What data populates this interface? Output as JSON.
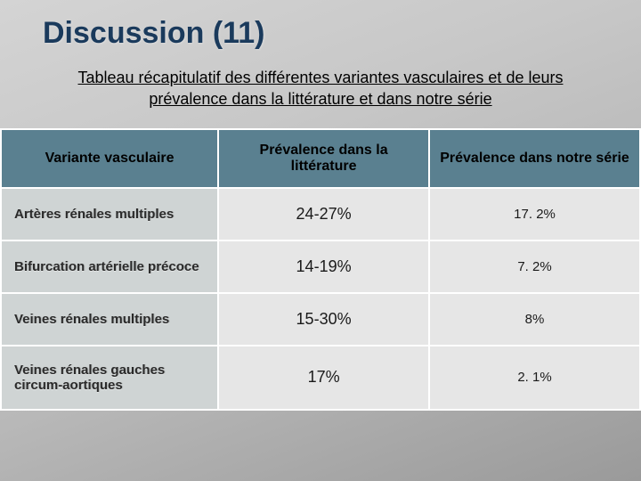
{
  "title": "Discussion (11)",
  "subtitle": "Tableau récapitulatif des différentes variantes vasculaires et de leurs prévalence dans la littérature et dans notre série",
  "table": {
    "columns": [
      "Variante vasculaire",
      "Prévalence dans la littérature",
      "Prévalence dans notre série"
    ],
    "rows": [
      {
        "label": "Artères rénales multiples",
        "lit": "24-27%",
        "serie": "17. 2%"
      },
      {
        "label": "Bifurcation artérielle précoce",
        "lit": "14-19%",
        "serie": "7. 2%"
      },
      {
        "label": "Veines rénales multiples",
        "lit": "15-30%",
        "serie": "8%"
      },
      {
        "label": "Veines rénales gauches circum-aortiques",
        "lit": "17%",
        "serie": "2. 1%"
      }
    ],
    "header_bg": "#5a8090",
    "row_label_bg": "#cfd4d4",
    "cell_bg": "#e6e6e6",
    "border_color": "#ffffff",
    "title_color": "#1a3a5c"
  }
}
